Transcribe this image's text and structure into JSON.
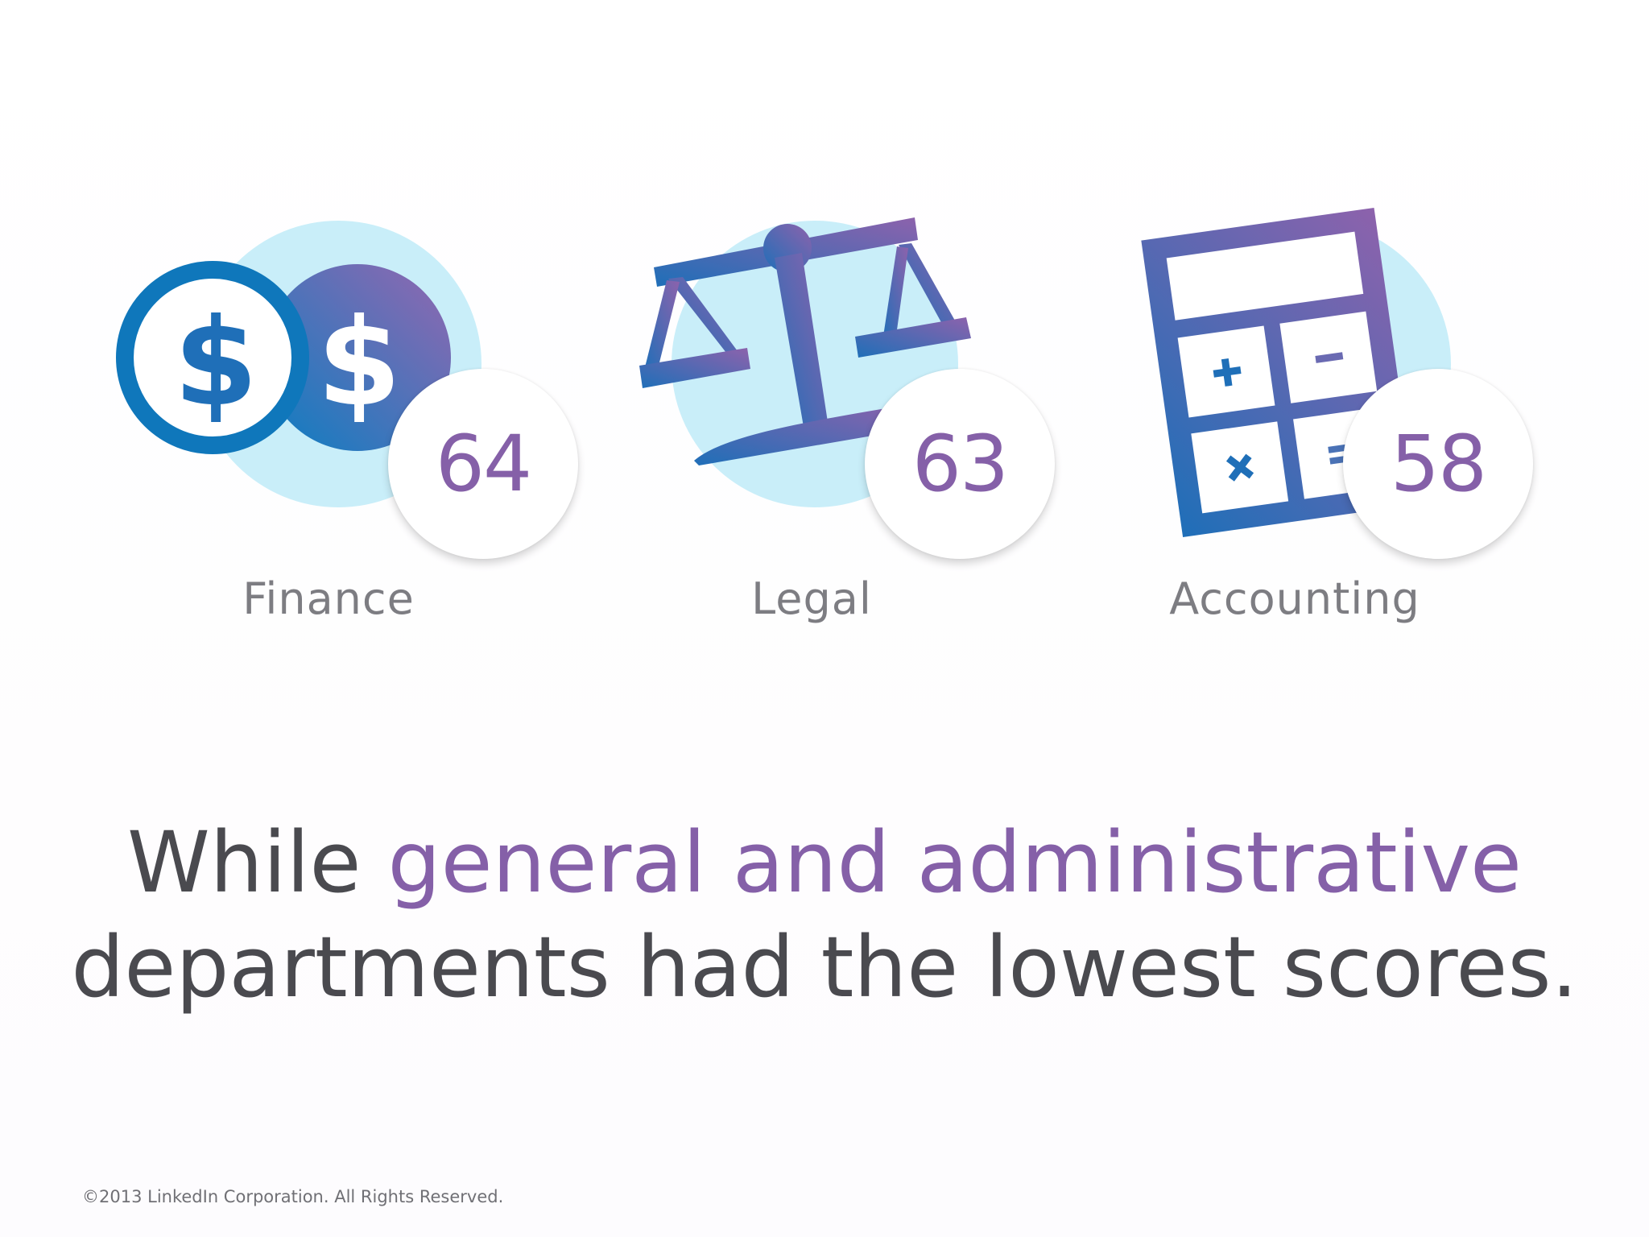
{
  "departments": [
    {
      "label": "Finance",
      "score": "64",
      "icon": "dollar-coins-icon"
    },
    {
      "label": "Legal",
      "score": "63",
      "icon": "scales-of-justice-icon"
    },
    {
      "label": "Accounting",
      "score": "58",
      "icon": "calculator-icon"
    }
  ],
  "headline": {
    "lead": "While ",
    "accent": "general and administrative",
    "tail": "departments had the lowest scores."
  },
  "footer": {
    "copyright": "©2013 LinkedIn Corporation. All Rights Reserved."
  },
  "colors": {
    "accent": "#8560a8",
    "icon_blue": "#0a7ec2",
    "icon_purple": "#9467b0",
    "halo": "#c9eef9",
    "text_gray": "#4a4a4f",
    "label_gray": "#7d7d82"
  }
}
